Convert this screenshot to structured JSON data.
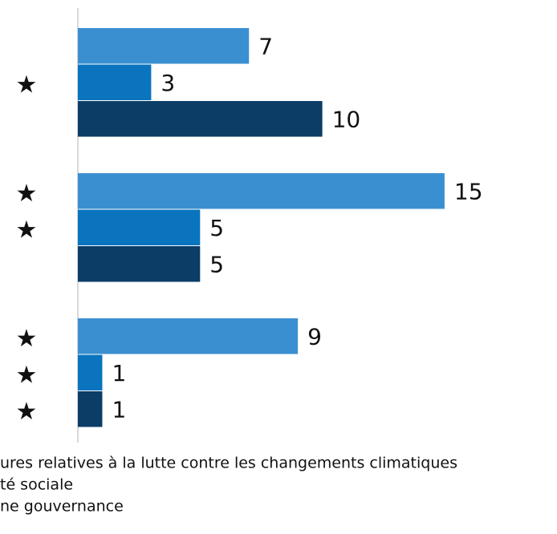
{
  "chart_data": {
    "type": "hbar",
    "categories": [
      null,
      null,
      null
    ],
    "series": [
      {
        "name": "ures relatives à la lutte contre les changements climatiques",
        "color": "#3a8fd0",
        "values": [
          7,
          15,
          9
        ],
        "starred": [
          false,
          true,
          true
        ]
      },
      {
        "name": "té sociale",
        "color": "#0a74bf",
        "values": [
          3,
          5,
          1
        ],
        "starred": [
          true,
          true,
          true
        ]
      },
      {
        "name": "ne gouvernance",
        "color": "#0b3d66",
        "values": [
          10,
          5,
          1
        ],
        "starred": [
          false,
          false,
          true
        ]
      }
    ],
    "marker": "★",
    "xlim": [
      0,
      19.6
    ]
  }
}
